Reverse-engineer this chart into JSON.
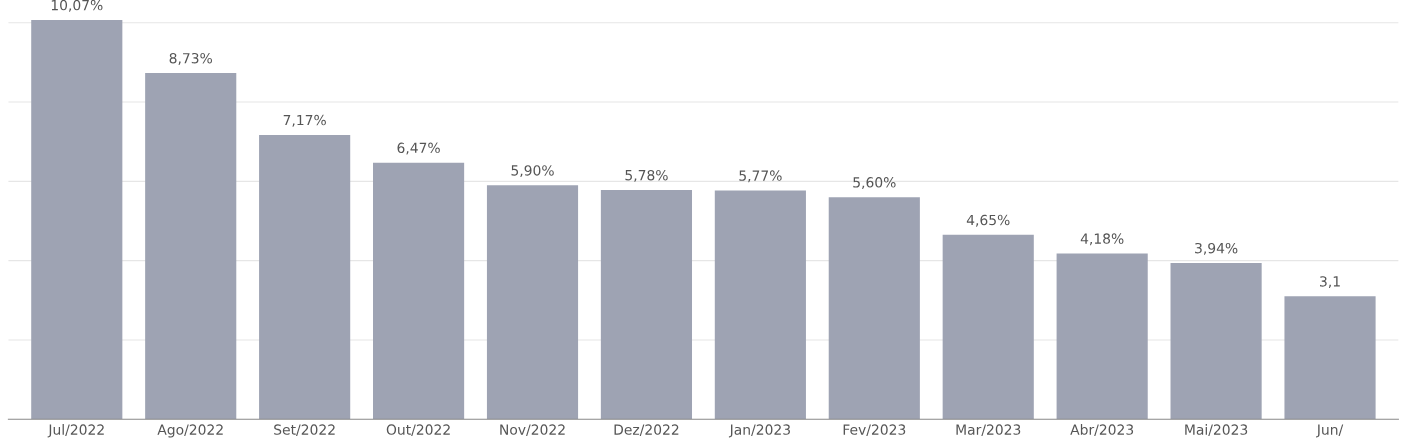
{
  "chart_data": {
    "type": "bar",
    "categories": [
      "Jul/2022",
      "Ago/2022",
      "Set/2022",
      "Out/2022",
      "Nov/2022",
      "Dez/2022",
      "Jan/2023",
      "Fev/2023",
      "Mar/2023",
      "Abr/2023",
      "Mai/2023",
      "Jun/"
    ],
    "values": [
      10.07,
      8.73,
      7.17,
      6.47,
      5.9,
      5.78,
      5.77,
      5.6,
      4.65,
      4.18,
      3.94,
      3.1
    ],
    "value_labels": [
      "10,07%",
      "8,73%",
      "7,17%",
      "6,47%",
      "5,90%",
      "5,78%",
      "5,77%",
      "5,60%",
      "4,65%",
      "4,18%",
      "3,94%",
      "3,1"
    ],
    "color": "#9ea3b3",
    "yticks": [
      {
        "value": 2,
        "label": null
      },
      {
        "value": 4,
        "label": null
      },
      {
        "value": 6,
        "label": null
      },
      {
        "value": 8,
        "label": null
      },
      {
        "value": 10,
        "label": null
      }
    ],
    "grid": "y",
    "tick_labels": "x"
  }
}
